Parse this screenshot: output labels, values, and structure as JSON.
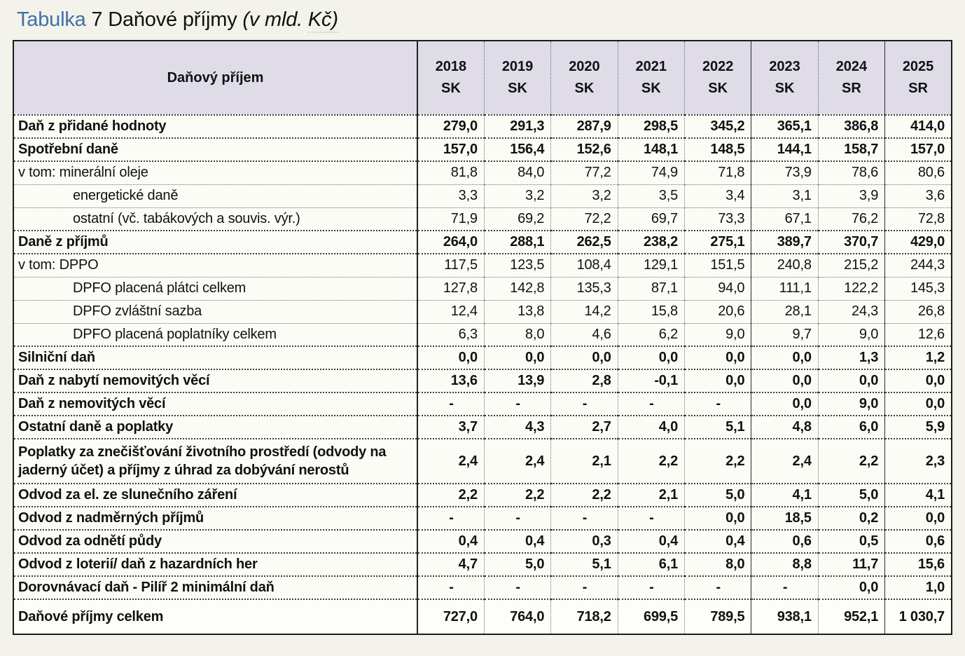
{
  "title": {
    "word_tabulka": "Tabulka",
    "main": " 7 Daňové příjmy ",
    "unit_prefix": "(v mld. ",
    "unit_kc": "Kč)"
  },
  "colors": {
    "header-bg": "#DFDCE8",
    "title-blue": "#3E71A8",
    "page-bg": "#F3F3EC",
    "cell-bg": "#FCFCF7"
  },
  "table": {
    "label_header": "Daňový příjem",
    "columns": [
      {
        "year": "2018",
        "type": "SK"
      },
      {
        "year": "2019",
        "type": "SK"
      },
      {
        "year": "2020",
        "type": "SK"
      },
      {
        "year": "2021",
        "type": "SK"
      },
      {
        "year": "2022",
        "type": "SK"
      },
      {
        "year": "2023",
        "type": "SK",
        "solid_left": true
      },
      {
        "year": "2024",
        "type": "SR"
      },
      {
        "year": "2025",
        "type": "SR",
        "solid_left": true
      }
    ],
    "rows": [
      {
        "label": "Daň z přidané hodnoty",
        "style": "section",
        "values": [
          "279,0",
          "291,3",
          "287,9",
          "298,5",
          "345,2",
          "365,1",
          "386,8",
          "414,0"
        ]
      },
      {
        "label": "Spotřební daně",
        "style": "section",
        "values": [
          "157,0",
          "156,4",
          "152,6",
          "148,1",
          "148,5",
          "144,1",
          "158,7",
          "157,0"
        ]
      },
      {
        "label": "v tom: minerální oleje",
        "style": "sub",
        "values": [
          "81,8",
          "84,0",
          "77,2",
          "74,9",
          "71,8",
          "73,9",
          "78,6",
          "80,6"
        ]
      },
      {
        "label": "energetické daně",
        "style": "indent",
        "values": [
          "3,3",
          "3,2",
          "3,2",
          "3,5",
          "3,4",
          "3,1",
          "3,9",
          "3,6"
        ]
      },
      {
        "label": "ostatní (vč. tabákových a souvis. výr.)",
        "style": "indent",
        "values": [
          "71,9",
          "69,2",
          "72,2",
          "69,7",
          "73,3",
          "67,1",
          "76,2",
          "72,8"
        ]
      },
      {
        "label": "Daně z příjmů",
        "style": "section",
        "values": [
          "264,0",
          "288,1",
          "262,5",
          "238,2",
          "275,1",
          "389,7",
          "370,7",
          "429,0"
        ]
      },
      {
        "label": "v tom: DPPO",
        "style": "sub",
        "values": [
          "117,5",
          "123,5",
          "108,4",
          "129,1",
          "151,5",
          "240,8",
          "215,2",
          "244,3"
        ]
      },
      {
        "label": "DPFO placená plátci celkem",
        "style": "indent",
        "values": [
          "127,8",
          "142,8",
          "135,3",
          "87,1",
          "94,0",
          "111,1",
          "122,2",
          "145,3"
        ]
      },
      {
        "label": "DPFO zvláštní sazba",
        "style": "indent",
        "values": [
          "12,4",
          "13,8",
          "14,2",
          "15,8",
          "20,6",
          "28,1",
          "24,3",
          "26,8"
        ]
      },
      {
        "label": "DPFO placená poplatníky celkem",
        "style": "indent",
        "values": [
          "6,3",
          "8,0",
          "4,6",
          "6,2",
          "9,0",
          "9,7",
          "9,0",
          "12,6"
        ]
      },
      {
        "label": "Silniční daň",
        "style": "section",
        "values": [
          "0,0",
          "0,0",
          "0,0",
          "0,0",
          "0,0",
          "0,0",
          "1,3",
          "1,2"
        ]
      },
      {
        "label": "Daň z nabytí nemovitých věcí",
        "style": "section",
        "values": [
          "13,6",
          "13,9",
          "2,8",
          "-0,1",
          "0,0",
          "0,0",
          "0,0",
          "0,0"
        ]
      },
      {
        "label": "Daň z nemovitých věcí",
        "style": "section",
        "values": [
          "-",
          "-",
          "-",
          "-",
          "-",
          "0,0",
          "9,0",
          "0,0"
        ]
      },
      {
        "label": "Ostatní daně a poplatky",
        "style": "section",
        "values": [
          "3,7",
          "4,3",
          "2,7",
          "4,0",
          "5,1",
          "4,8",
          "6,0",
          "5,9"
        ]
      },
      {
        "label": "Poplatky za znečišťování životního prostředí (odvody na jaderný účet) a příjmy z úhrad za dobývání nerostů",
        "style": "section",
        "tall": true,
        "values": [
          "2,4",
          "2,4",
          "2,1",
          "2,2",
          "2,2",
          "2,4",
          "2,2",
          "2,3"
        ]
      },
      {
        "label": "Odvod za el. ze slunečního záření",
        "style": "section",
        "values": [
          "2,2",
          "2,2",
          "2,2",
          "2,1",
          "5,0",
          "4,1",
          "5,0",
          "4,1"
        ]
      },
      {
        "label": "Odvod z nadměrných příjmů",
        "style": "section",
        "values": [
          "-",
          "-",
          "-",
          "-",
          "0,0",
          "18,5",
          "0,2",
          "0,0"
        ]
      },
      {
        "label": "Odvod za odnětí půdy",
        "style": "section",
        "values": [
          "0,4",
          "0,4",
          "0,3",
          "0,4",
          "0,4",
          "0,6",
          "0,5",
          "0,6"
        ]
      },
      {
        "label": "Odvod z loterií/ daň z hazardních her",
        "style": "section",
        "values": [
          "4,7",
          "5,0",
          "5,1",
          "6,1",
          "8,0",
          "8,8",
          "11,7",
          "15,6"
        ]
      },
      {
        "label": "Dorovnávací daň - Pilíř 2 minimální daň",
        "style": "section",
        "values": [
          "-",
          "-",
          "-",
          "-",
          "-",
          "-",
          "0,0",
          "1,0"
        ]
      },
      {
        "label": "Daňové příjmy celkem",
        "style": "total",
        "values": [
          "727,0",
          "764,0",
          "718,2",
          "699,5",
          "789,5",
          "938,1",
          "952,1",
          "1 030,7"
        ]
      }
    ]
  }
}
